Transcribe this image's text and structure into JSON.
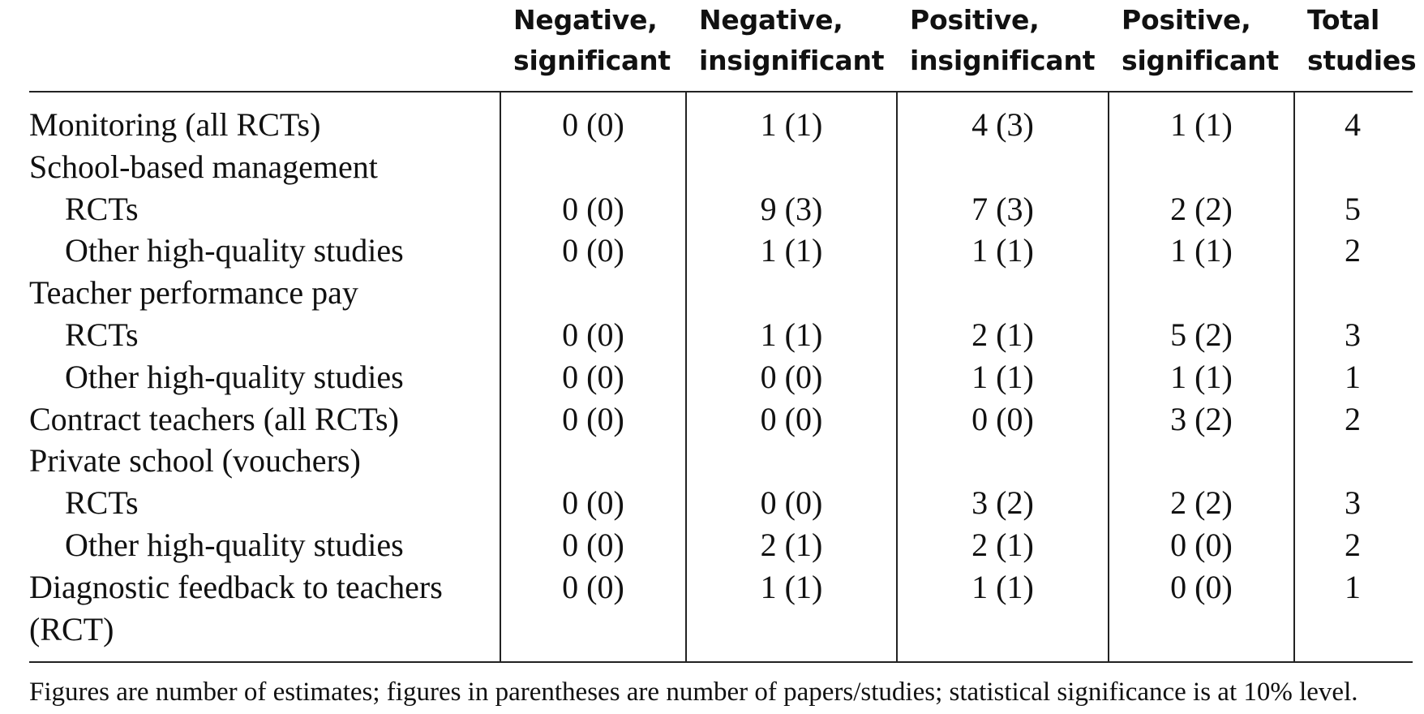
{
  "table": {
    "headers": [
      [
        "",
        ""
      ],
      [
        "Negative,",
        "significant"
      ],
      [
        "Negative,",
        "insignificant"
      ],
      [
        "Positive,",
        "insignificant"
      ],
      [
        "Positive,",
        "significant"
      ],
      [
        "Total",
        "studies"
      ]
    ],
    "rows": [
      {
        "label": "Monitoring (all RCTs)",
        "indent": false,
        "cells": [
          "0 (0)",
          "1 (1)",
          "4 (3)",
          "1 (1)",
          "4"
        ]
      },
      {
        "label": "School-based management",
        "indent": false,
        "cells": [
          "",
          "",
          "",
          "",
          ""
        ]
      },
      {
        "label": "RCTs",
        "indent": true,
        "cells": [
          "0 (0)",
          "9 (3)",
          "7 (3)",
          "2 (2)",
          "5"
        ]
      },
      {
        "label": "Other high-quality studies",
        "indent": true,
        "cells": [
          "0 (0)",
          "1 (1)",
          "1 (1)",
          "1 (1)",
          "2"
        ]
      },
      {
        "label": "Teacher performance pay",
        "indent": false,
        "cells": [
          "",
          "",
          "",
          "",
          ""
        ]
      },
      {
        "label": "RCTs",
        "indent": true,
        "cells": [
          "0 (0)",
          "1 (1)",
          "2 (1)",
          "5 (2)",
          "3"
        ]
      },
      {
        "label": "Other high-quality studies",
        "indent": true,
        "cells": [
          "0 (0)",
          "0 (0)",
          "1 (1)",
          "1 (1)",
          "1"
        ]
      },
      {
        "label": "Contract teachers (all RCTs)",
        "indent": false,
        "cells": [
          "0 (0)",
          "0 (0)",
          "0 (0)",
          "3 (2)",
          "2"
        ]
      },
      {
        "label": "Private school (vouchers)",
        "indent": false,
        "cells": [
          "",
          "",
          "",
          "",
          ""
        ]
      },
      {
        "label": "RCTs",
        "indent": true,
        "cells": [
          "0 (0)",
          "0 (0)",
          "3 (2)",
          "2 (2)",
          "3"
        ]
      },
      {
        "label": "Other high-quality studies",
        "indent": true,
        "cells": [
          "0 (0)",
          "2 (1)",
          "2 (1)",
          "0 (0)",
          "2"
        ]
      },
      {
        "label": "Diagnostic feedback to teachers",
        "indent": false,
        "cells": [
          "0 (0)",
          "1 (1)",
          "1 (1)",
          "0 (0)",
          "1"
        ]
      },
      {
        "label": "(RCT)",
        "indent": false,
        "cells": [
          "",
          "",
          "",
          "",
          ""
        ]
      }
    ]
  },
  "note": "Figures are number of estimates; figures in parentheses are number of papers/studies; statistical significance is at 10% level."
}
